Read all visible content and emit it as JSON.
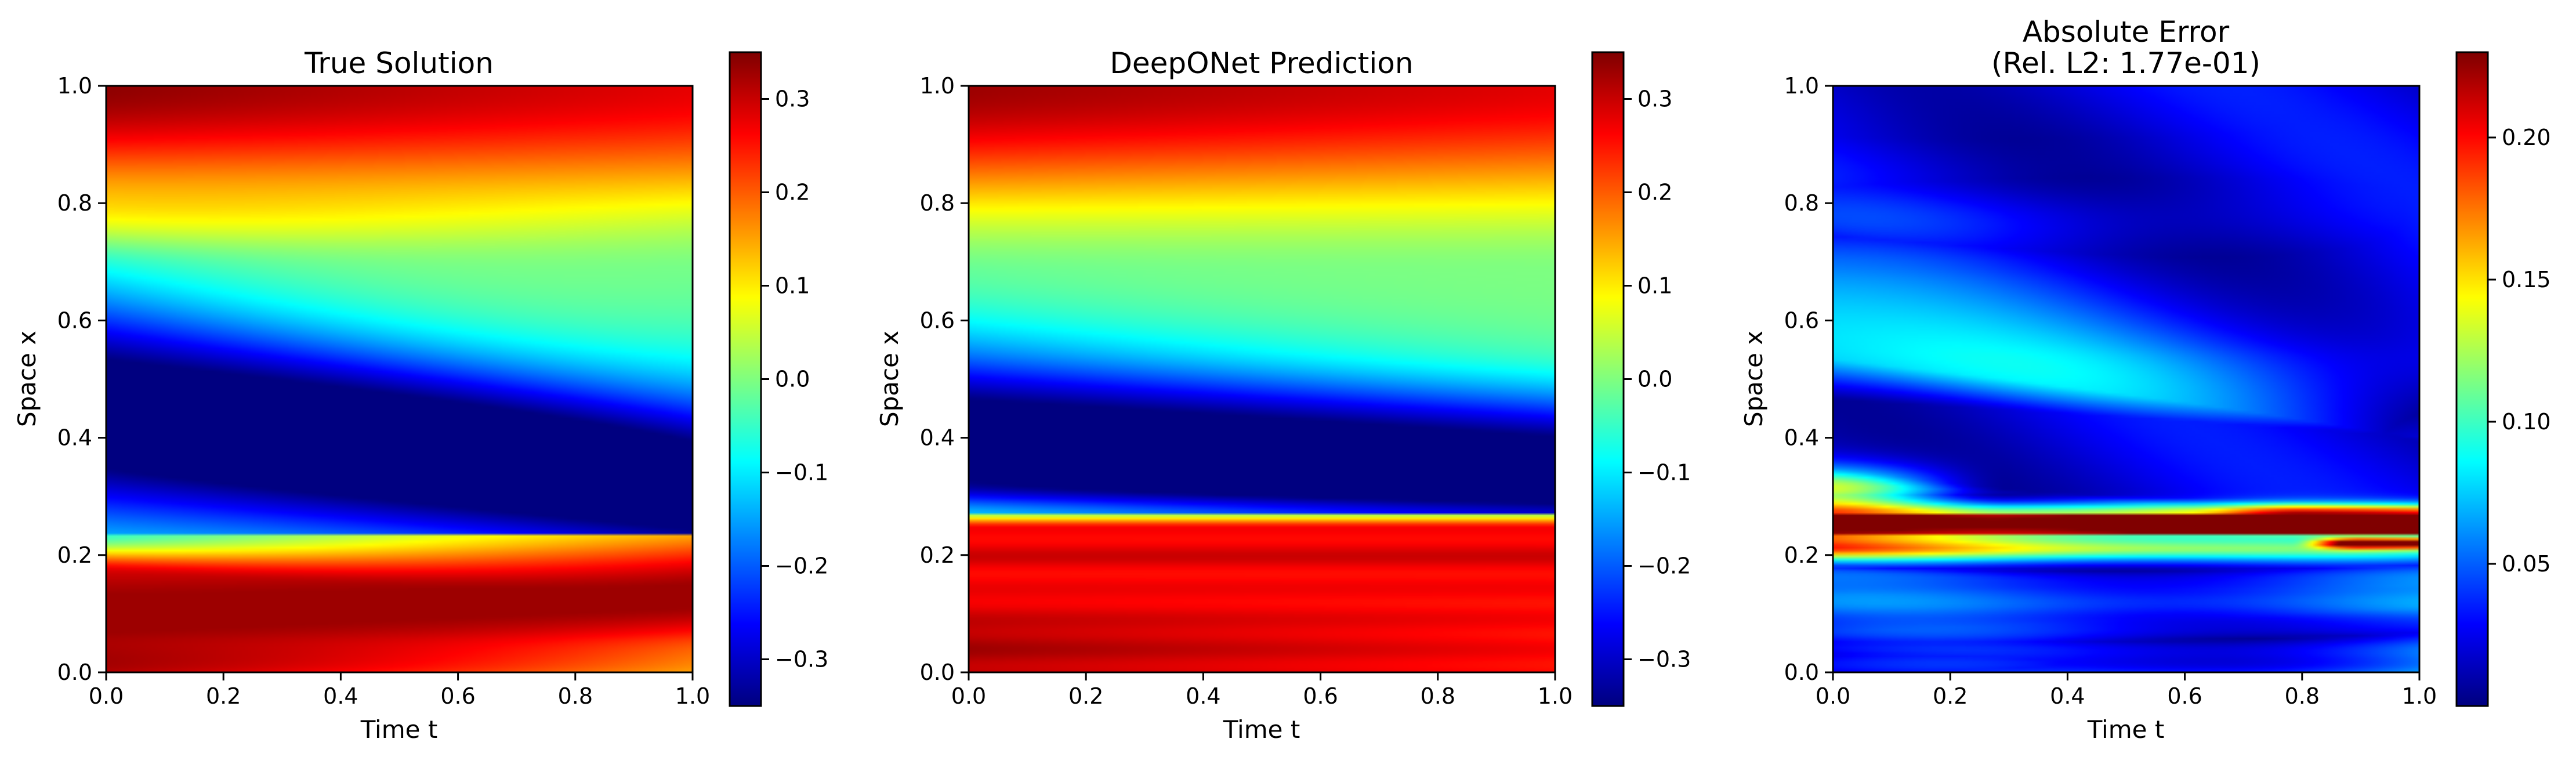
{
  "chart_data": [
    {
      "type": "heatmap",
      "title": "True Solution",
      "xlabel": "Time t",
      "ylabel": "Space x",
      "xlim": [
        0.0,
        1.0
      ],
      "ylim": [
        0.0,
        1.0
      ],
      "xticks": [
        0.0,
        0.2,
        0.4,
        0.6,
        0.8,
        1.0
      ],
      "xtick_labels": [
        "0.0",
        "0.2",
        "0.4",
        "0.6",
        "0.8",
        "1.0"
      ],
      "yticks": [
        0.0,
        0.2,
        0.4,
        0.6,
        0.8,
        1.0
      ],
      "ytick_labels": [
        "0.0",
        "0.2",
        "0.4",
        "0.6",
        "0.8",
        "1.0"
      ],
      "colormap": "jet",
      "colorbar": {
        "vmin": -0.35,
        "vmax": 0.35,
        "ticks": [
          -0.3,
          -0.2,
          -0.1,
          0.0,
          0.1,
          0.2,
          0.3
        ],
        "tick_labels": [
          "−0.3",
          "−0.2",
          "−0.1",
          "0.0",
          "0.1",
          "0.2",
          "0.3"
        ]
      },
      "grid": false,
      "field": "true"
    },
    {
      "type": "heatmap",
      "title": "DeepONet Prediction",
      "xlabel": "Time t",
      "ylabel": "Space x",
      "xlim": [
        0.0,
        1.0
      ],
      "ylim": [
        0.0,
        1.0
      ],
      "xticks": [
        0.0,
        0.2,
        0.4,
        0.6,
        0.8,
        1.0
      ],
      "xtick_labels": [
        "0.0",
        "0.2",
        "0.4",
        "0.6",
        "0.8",
        "1.0"
      ],
      "yticks": [
        0.0,
        0.2,
        0.4,
        0.6,
        0.8,
        1.0
      ],
      "ytick_labels": [
        "0.0",
        "0.2",
        "0.4",
        "0.6",
        "0.8",
        "1.0"
      ],
      "colormap": "jet",
      "colorbar": {
        "vmin": -0.35,
        "vmax": 0.35,
        "ticks": [
          -0.3,
          -0.2,
          -0.1,
          0.0,
          0.1,
          0.2,
          0.3
        ],
        "tick_labels": [
          "−0.3",
          "−0.2",
          "−0.1",
          "0.0",
          "0.1",
          "0.2",
          "0.3"
        ]
      },
      "grid": false,
      "field": "pred"
    },
    {
      "type": "heatmap",
      "title": "Absolute Error",
      "subtitle": "(Rel. L2: 1.77e-01)",
      "xlabel": "Time t",
      "ylabel": "Space x",
      "xlim": [
        0.0,
        1.0
      ],
      "ylim": [
        0.0,
        1.0
      ],
      "xticks": [
        0.0,
        0.2,
        0.4,
        0.6,
        0.8,
        1.0
      ],
      "xtick_labels": [
        "0.0",
        "0.2",
        "0.4",
        "0.6",
        "0.8",
        "1.0"
      ],
      "yticks": [
        0.0,
        0.2,
        0.4,
        0.6,
        0.8,
        1.0
      ],
      "ytick_labels": [
        "0.0",
        "0.2",
        "0.4",
        "0.6",
        "0.8",
        "1.0"
      ],
      "colormap": "jet",
      "colorbar": {
        "vmin": 0.0,
        "vmax": 0.23,
        "ticks": [
          0.05,
          0.1,
          0.15,
          0.2
        ],
        "tick_labels": [
          "0.05",
          "0.10",
          "0.15",
          "0.20"
        ]
      },
      "grid": false,
      "field": "error"
    }
  ]
}
